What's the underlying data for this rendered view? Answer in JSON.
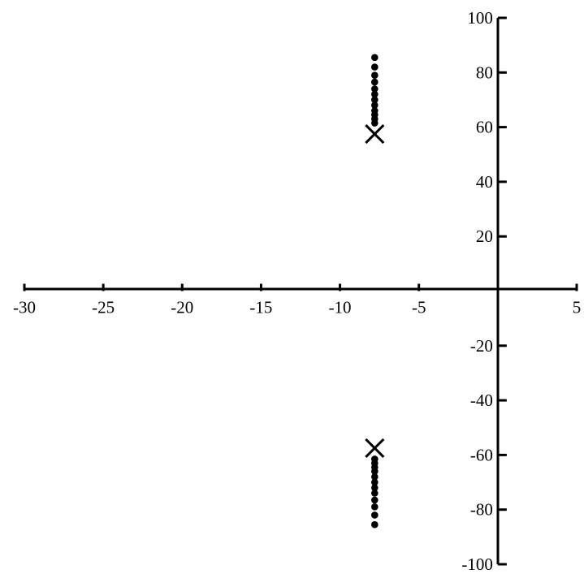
{
  "chart_data": {
    "type": "scatter",
    "title": "",
    "xlabel": "",
    "ylabel": "",
    "xlim": [
      -30,
      5
    ],
    "ylim": [
      -100,
      100
    ],
    "x_ticks": [
      -30,
      -25,
      -20,
      -15,
      -10,
      -5,
      5
    ],
    "x_tick_labels": [
      "-30",
      "-25",
      "-20",
      "-15",
      "-10",
      "-5",
      "5"
    ],
    "y_ticks": [
      100,
      80,
      60,
      40,
      20,
      -20,
      -40,
      -60,
      -80,
      -100
    ],
    "y_tick_labels": [
      "100",
      "80",
      "60",
      "40",
      "20",
      "-20",
      "-40",
      "-60",
      "-80",
      "-100"
    ],
    "grid": false,
    "legend": "none",
    "series": [
      {
        "marker": "x",
        "points": [
          [
            -7.8,
            57.5
          ],
          [
            -7.8,
            -57.5
          ]
        ]
      },
      {
        "marker": "dot",
        "points": [
          [
            -7.8,
            61.5
          ],
          [
            -7.8,
            63
          ],
          [
            -7.8,
            64.5
          ],
          [
            -7.8,
            66
          ],
          [
            -7.8,
            68
          ],
          [
            -7.8,
            70
          ],
          [
            -7.8,
            72
          ],
          [
            -7.8,
            74
          ],
          [
            -7.8,
            76.5
          ],
          [
            -7.8,
            79
          ],
          [
            -7.8,
            82
          ],
          [
            -7.8,
            85.5
          ],
          [
            -7.8,
            -61.5
          ],
          [
            -7.8,
            -63
          ],
          [
            -7.8,
            -64.5
          ],
          [
            -7.8,
            -66
          ],
          [
            -7.8,
            -68
          ],
          [
            -7.8,
            -70
          ],
          [
            -7.8,
            -72
          ],
          [
            -7.8,
            -74
          ],
          [
            -7.8,
            -76.5
          ],
          [
            -7.8,
            -79
          ],
          [
            -7.8,
            -82
          ],
          [
            -7.8,
            -85.5
          ]
        ]
      }
    ]
  }
}
